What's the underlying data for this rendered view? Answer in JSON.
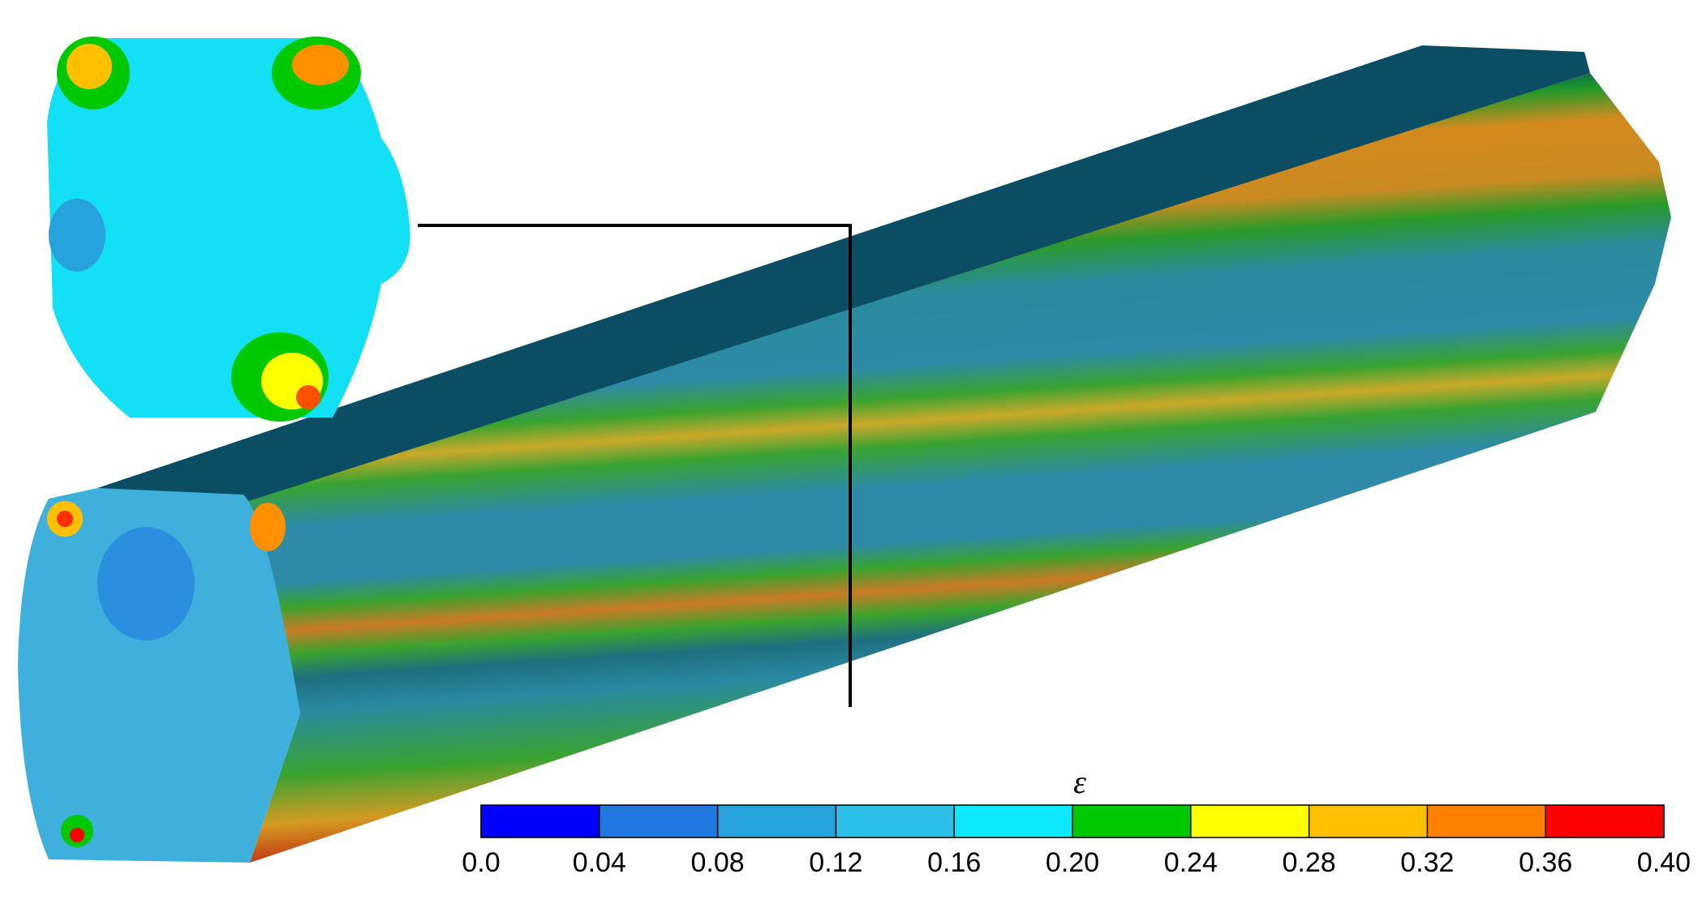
{
  "colorbar": {
    "label": "ε",
    "ticks": [
      {
        "value": 0,
        "label": "0.0"
      },
      0.04,
      0.08,
      0.12,
      0.16,
      {
        "value": 0.2,
        "label": "0.20"
      },
      0.24,
      0.28,
      0.32,
      0.36,
      {
        "value": 0.4,
        "label": "0.40"
      }
    ],
    "lim": [
      0,
      0.4
    ],
    "colors": [
      "#0000ff",
      "#1e78e0",
      "#26a2dc",
      "#2bc0e8",
      "#0ae8fa",
      "#00c800",
      "#ffff00",
      "#ffc000",
      "#ff8000",
      "#ff0000"
    ]
  }
}
